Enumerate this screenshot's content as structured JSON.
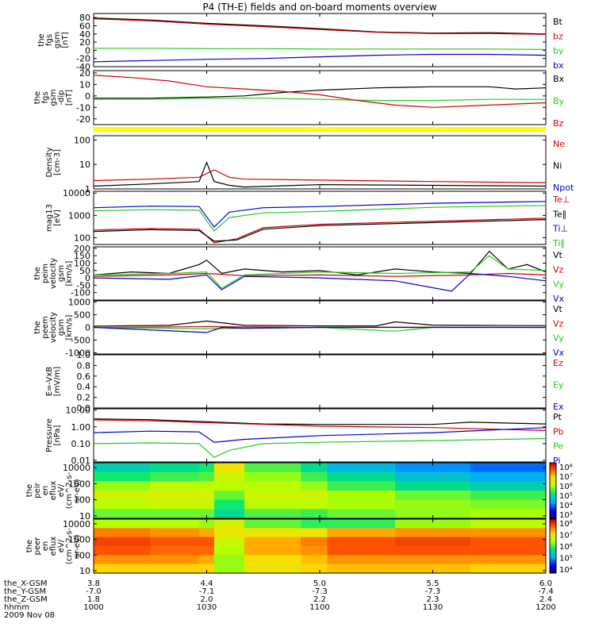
{
  "title": "P4 (TH-E) fields and on-board moments overview",
  "colors": {
    "black": "#000000",
    "red": "#d00000",
    "green": "#22cc22",
    "blue": "#0000cc",
    "yellow": "#ffff00"
  },
  "footer": {
    "rows": [
      {
        "label": "the_X-GSM",
        "values": [
          "3.8",
          "4.4",
          "5.0",
          "5.5",
          "6.0"
        ]
      },
      {
        "label": "the_Y-GSM",
        "values": [
          "-7.0",
          "-7.1",
          "-7.3",
          "-7.3",
          "-7.4"
        ]
      },
      {
        "label": "the_Z-GSM",
        "values": [
          "1.8",
          "2.0",
          "2.2",
          "2.3",
          "2.4"
        ]
      },
      {
        "label": "hhmm",
        "values": [
          "1000",
          "1030",
          "1100",
          "1130",
          "1200"
        ]
      }
    ],
    "date": "2009 Nov 08"
  },
  "chart_data": [
    {
      "type": "line",
      "ylabel": [
        "the",
        "fgs",
        "gsm",
        "[nT]"
      ],
      "ylim": [
        -40,
        90
      ],
      "yticks": [
        "80",
        "60",
        "40",
        "20",
        "0",
        "-20",
        "-40"
      ],
      "legend": [
        {
          "name": "Bt",
          "color": "#000000"
        },
        {
          "name": "bz",
          "color": "#d00000"
        },
        {
          "name": "by",
          "color": "#22cc22"
        },
        {
          "name": "bx",
          "color": "#0000cc"
        }
      ],
      "series": [
        {
          "name": "Bt",
          "color": "#000000",
          "x": [
            0,
            15,
            30,
            45,
            60,
            75,
            90,
            105,
            120
          ],
          "y": [
            79,
            74,
            66,
            60,
            53,
            45,
            42,
            43,
            40
          ]
        },
        {
          "name": "bz",
          "color": "#d00000",
          "x": [
            0,
            15,
            30,
            45,
            60,
            75,
            90,
            105,
            120
          ],
          "y": [
            77,
            72,
            64,
            58,
            51,
            44,
            41,
            41,
            39
          ]
        },
        {
          "name": "by",
          "color": "#22cc22",
          "x": [
            0,
            15,
            30,
            45,
            60,
            75,
            90,
            105,
            120
          ],
          "y": [
            5,
            5,
            4,
            4,
            3,
            3,
            3,
            3,
            2
          ]
        },
        {
          "name": "bx",
          "color": "#0000cc",
          "x": [
            0,
            15,
            30,
            45,
            60,
            75,
            90,
            105,
            120
          ],
          "y": [
            -28,
            -25,
            -22,
            -20,
            -16,
            -12,
            -10,
            -10,
            -12
          ]
        }
      ]
    },
    {
      "type": "line",
      "ylabel": [
        "the",
        "fgs",
        "gsm",
        "-dip",
        "[nT]"
      ],
      "ylim": [
        -25,
        22
      ],
      "yticks": [
        "20",
        "10",
        "0",
        "-10",
        "-20"
      ],
      "legend": [
        {
          "name": "Bx",
          "color": "#000000"
        },
        {
          "name": "By",
          "color": "#22cc22"
        },
        {
          "name": "Bz",
          "color": "#d00000"
        }
      ],
      "series": [
        {
          "name": "Bx",
          "color": "#000000",
          "x": [
            0,
            15,
            30,
            40,
            50,
            60,
            75,
            90,
            105,
            112,
            120
          ],
          "y": [
            -2,
            -2,
            -1,
            0,
            3,
            5,
            7,
            8,
            8,
            6,
            7
          ]
        },
        {
          "name": "By",
          "color": "#22cc22",
          "x": [
            0,
            15,
            30,
            45,
            60,
            75,
            90,
            105,
            120
          ],
          "y": [
            -3,
            -3,
            -2,
            -2,
            -3,
            -4,
            -4,
            -3,
            -3
          ]
        },
        {
          "name": "Bz",
          "color": "#d00000",
          "x": [
            0,
            10,
            20,
            30,
            40,
            50,
            60,
            70,
            80,
            90,
            105,
            120
          ],
          "y": [
            18,
            16,
            13,
            8,
            6,
            4,
            1,
            -4,
            -8,
            -10,
            -8,
            -6
          ]
        }
      ]
    },
    {
      "type": "log-line",
      "ylabel": [
        "Density",
        "[cm-3]"
      ],
      "ylim": [
        1,
        150
      ],
      "yticks": [
        "100",
        "10",
        "1"
      ],
      "legend": [
        {
          "name": "Ne",
          "color": "#d00000"
        },
        {
          "name": "Ni",
          "color": "#000000"
        },
        {
          "name": "Npot",
          "color": "#0000cc"
        }
      ],
      "series": [
        {
          "name": "Ne",
          "color": "#d00000",
          "x": [
            0,
            15,
            28,
            32,
            36,
            40,
            60,
            90,
            120
          ],
          "y": [
            2.2,
            2.5,
            3.0,
            6.0,
            3.0,
            2.5,
            2.3,
            2.0,
            1.8
          ]
        },
        {
          "name": "Ni",
          "color": "#000000",
          "x": [
            0,
            15,
            28,
            30,
            32,
            36,
            40,
            60,
            90,
            120
          ],
          "y": [
            1.3,
            1.6,
            2.0,
            12,
            2.0,
            1.4,
            1.2,
            1.5,
            1.4,
            1.3
          ]
        }
      ]
    },
    {
      "type": "log-line",
      "ylabel": [
        "mag13",
        "[eV]"
      ],
      "ylim": [
        50,
        12000
      ],
      "yticks": [
        "10000",
        "1000",
        "100"
      ],
      "legend": [
        {
          "name": "Te⊥",
          "color": "#d00000"
        },
        {
          "name": "Te∥",
          "color": "#000000"
        },
        {
          "name": "Ti⊥",
          "color": "#0000cc"
        },
        {
          "name": "Ti∥",
          "color": "#22cc22"
        }
      ],
      "series": [
        {
          "name": "Ti⊥",
          "color": "#0000cc",
          "x": [
            0,
            15,
            28,
            32,
            36,
            45,
            60,
            90,
            120
          ],
          "y": [
            2200,
            2600,
            2500,
            300,
            1400,
            2200,
            2500,
            3500,
            4200
          ]
        },
        {
          "name": "Ti∥",
          "color": "#22cc22",
          "x": [
            0,
            15,
            28,
            32,
            36,
            45,
            60,
            90,
            120
          ],
          "y": [
            1600,
            1800,
            1700,
            200,
            800,
            1300,
            1500,
            2300,
            2800
          ]
        },
        {
          "name": "Te⊥",
          "color": "#d00000",
          "x": [
            0,
            15,
            28,
            32,
            38,
            45,
            60,
            90,
            120
          ],
          "y": [
            220,
            260,
            240,
            60,
            90,
            280,
            400,
            550,
            750
          ]
        },
        {
          "name": "Te∥",
          "color": "#000000",
          "x": [
            0,
            15,
            28,
            32,
            38,
            45,
            60,
            90,
            120
          ],
          "y": [
            190,
            230,
            210,
            70,
            80,
            240,
            350,
            480,
            650
          ]
        }
      ]
    },
    {
      "type": "line",
      "ylabel": [
        "the",
        "peim",
        "velocity",
        "gsm",
        "[km/s]"
      ],
      "ylim": [
        -150,
        210
      ],
      "yticks": [
        "200",
        "150",
        "100",
        "50",
        "0",
        "-50",
        "-100"
      ],
      "legend": [
        {
          "name": "Vt",
          "color": "#000000"
        },
        {
          "name": "Vz",
          "color": "#d00000"
        },
        {
          "name": "Vy",
          "color": "#22cc22"
        },
        {
          "name": "Vx",
          "color": "#0000cc"
        }
      ],
      "series": [
        {
          "name": "Vt",
          "color": "#000000",
          "x": [
            0,
            10,
            20,
            28,
            30,
            34,
            40,
            50,
            60,
            70,
            80,
            90,
            100,
            105,
            110,
            115,
            120
          ],
          "y": [
            20,
            40,
            30,
            90,
            120,
            30,
            60,
            40,
            50,
            20,
            60,
            40,
            30,
            180,
            60,
            90,
            40
          ]
        },
        {
          "name": "Vz",
          "color": "#d00000",
          "x": [
            0,
            20,
            30,
            40,
            60,
            80,
            100,
            110,
            120
          ],
          "y": [
            10,
            20,
            30,
            15,
            20,
            10,
            20,
            30,
            20
          ]
        },
        {
          "name": "Vy",
          "color": "#22cc22",
          "x": [
            0,
            20,
            30,
            34,
            40,
            60,
            80,
            100,
            105,
            110,
            120
          ],
          "y": [
            20,
            30,
            40,
            -70,
            20,
            40,
            30,
            40,
            150,
            60,
            50
          ]
        },
        {
          "name": "Vx",
          "color": "#0000cc",
          "x": [
            0,
            20,
            30,
            34,
            40,
            60,
            80,
            95,
            100,
            110,
            120
          ],
          "y": [
            0,
            -10,
            20,
            -80,
            10,
            0,
            -20,
            -90,
            30,
            10,
            -20
          ]
        }
      ]
    },
    {
      "type": "line",
      "ylabel": [
        "the",
        "peem",
        "velocity",
        "gsm",
        "[km/s]"
      ],
      "ylim": [
        -1050,
        1050
      ],
      "yticks": [
        "1000",
        "500",
        "0",
        "-500",
        "-1000"
      ],
      "legend": [
        {
          "name": "Vt",
          "color": "#000000"
        },
        {
          "name": "Vz",
          "color": "#d00000"
        },
        {
          "name": "Vy",
          "color": "#22cc22"
        },
        {
          "name": "Vx",
          "color": "#0000cc"
        }
      ],
      "series": [
        {
          "name": "Vt",
          "color": "#000000",
          "x": [
            0,
            20,
            30,
            40,
            60,
            75,
            80,
            90,
            100,
            120
          ],
          "y": [
            50,
            80,
            250,
            80,
            60,
            60,
            220,
            90,
            80,
            70
          ]
        },
        {
          "name": "Vz",
          "color": "#d00000",
          "x": [
            0,
            30,
            60,
            90,
            120
          ],
          "y": [
            0,
            30,
            0,
            10,
            0
          ]
        },
        {
          "name": "Vy",
          "color": "#22cc22",
          "x": [
            0,
            30,
            60,
            80,
            90,
            120
          ],
          "y": [
            0,
            -50,
            0,
            -150,
            0,
            0
          ]
        },
        {
          "name": "Vx",
          "color": "#0000cc",
          "x": [
            0,
            30,
            34,
            40,
            60,
            120
          ],
          "y": [
            0,
            -200,
            0,
            -30,
            0,
            0
          ]
        }
      ]
    },
    {
      "type": "line",
      "ylabel": [
        "E=-VxB",
        "[mV/m]"
      ],
      "ylim": [
        0,
        1
      ],
      "yticks": [
        "1.0",
        "0.8",
        "0.6",
        "0.4",
        "0.2",
        "0.0"
      ],
      "legend": [
        {
          "name": "Ez",
          "color": "#d00000"
        },
        {
          "name": "Ey",
          "color": "#22cc22"
        },
        {
          "name": "Ex",
          "color": "#0000cc"
        }
      ],
      "series": []
    },
    {
      "type": "log-line",
      "ylabel": [
        "Pressure",
        "[nPa]"
      ],
      "ylim": [
        0.008,
        12
      ],
      "yticks": [
        "10.00",
        "1.00",
        "0.10",
        "0.01"
      ],
      "legend": [
        {
          "name": "Pt",
          "color": "#000000"
        },
        {
          "name": "Pb",
          "color": "#d00000"
        },
        {
          "name": "Pe",
          "color": "#22cc22"
        },
        {
          "name": "Pi",
          "color": "#0000cc"
        }
      ],
      "series": [
        {
          "name": "Pt",
          "color": "#000000",
          "x": [
            0,
            15,
            30,
            45,
            60,
            90,
            100,
            120
          ],
          "y": [
            3.0,
            2.7,
            2.0,
            1.5,
            1.4,
            1.4,
            1.9,
            1.5
          ]
        },
        {
          "name": "Pb",
          "color": "#d00000",
          "x": [
            0,
            15,
            30,
            45,
            60,
            90,
            120
          ],
          "y": [
            2.6,
            2.3,
            1.8,
            1.4,
            1.1,
            0.9,
            0.6
          ]
        },
        {
          "name": "Pi",
          "color": "#0000cc",
          "x": [
            0,
            15,
            28,
            32,
            40,
            60,
            90,
            120
          ],
          "y": [
            0.45,
            0.55,
            0.5,
            0.12,
            0.18,
            0.3,
            0.45,
            0.9
          ]
        },
        {
          "name": "Pe",
          "color": "#22cc22",
          "x": [
            0,
            15,
            28,
            32,
            36,
            45,
            60,
            90,
            120
          ],
          "y": [
            0.1,
            0.11,
            0.1,
            0.015,
            0.04,
            0.1,
            0.12,
            0.15,
            0.2
          ]
        }
      ]
    },
    {
      "type": "heatmap",
      "ylabel": [
        "the",
        "peir",
        "en",
        "eflux",
        "eV/",
        "(cm^2-s-",
        "sr-eV)"
      ],
      "ylim": [
        7,
        20000
      ],
      "yticks": [
        "10000",
        "1000",
        "100",
        "10"
      ],
      "colorbar": {
        "labels": [
          "10⁸",
          "10⁷",
          "10⁶",
          "10⁵",
          "10⁴",
          "10³"
        ],
        "min_exp": 2.7,
        "max_exp": 8.1
      },
      "x": [
        0,
        15,
        28,
        32,
        40,
        55,
        62,
        80,
        100,
        120
      ],
      "grid": [
        [
          4.8,
          5.0,
          5.2,
          6.6,
          5.5,
          5.0,
          4.5,
          4.2,
          4.0,
          3.9
        ],
        [
          5.2,
          5.4,
          5.5,
          6.2,
          5.8,
          5.4,
          5.0,
          4.6,
          4.4,
          4.2
        ],
        [
          5.8,
          6.0,
          6.0,
          6.0,
          6.0,
          5.8,
          5.4,
          5.0,
          4.8,
          4.6
        ],
        [
          6.2,
          6.3,
          6.3,
          5.6,
          6.2,
          6.2,
          5.9,
          5.6,
          5.4,
          5.2
        ],
        [
          6.0,
          6.1,
          6.1,
          5.2,
          6.0,
          6.0,
          5.9,
          5.8,
          5.7,
          5.6
        ],
        [
          5.6,
          5.6,
          5.6,
          5.0,
          5.5,
          5.4,
          5.6,
          5.8,
          5.9,
          5.9
        ]
      ]
    },
    {
      "type": "heatmap",
      "ylabel": [
        "the",
        "peer",
        "en",
        "eflux",
        "eV/",
        "(cm^2-s-",
        "sr-eV)"
      ],
      "ylim": [
        7,
        20000
      ],
      "yticks": [
        "10000",
        "1000",
        "100",
        "10"
      ],
      "colorbar": {
        "labels": [
          "10⁸",
          "10⁷",
          "10⁶",
          "10⁵",
          "10⁴"
        ],
        "min_exp": 3.6,
        "max_exp": 8.1
      },
      "x": [
        0,
        15,
        28,
        32,
        40,
        55,
        62,
        80,
        100,
        120
      ],
      "grid": [
        [
          6.3,
          6.3,
          6.2,
          6.6,
          6.0,
          5.8,
          5.8,
          6.2,
          6.4,
          6.5
        ],
        [
          7.4,
          7.3,
          7.2,
          6.8,
          6.8,
          6.8,
          7.2,
          7.3,
          7.3,
          7.2
        ],
        [
          7.7,
          7.6,
          7.6,
          6.5,
          7.2,
          7.4,
          7.6,
          7.7,
          7.6,
          7.5
        ],
        [
          7.6,
          7.5,
          7.5,
          6.3,
          7.2,
          7.3,
          7.6,
          7.6,
          7.6,
          7.4
        ],
        [
          7.3,
          7.3,
          7.2,
          6.2,
          6.9,
          7.1,
          7.3,
          7.3,
          7.3,
          7.2
        ],
        [
          7.0,
          7.0,
          7.0,
          6.2,
          6.8,
          7.0,
          7.1,
          7.1,
          7.0,
          7.0
        ]
      ]
    }
  ]
}
